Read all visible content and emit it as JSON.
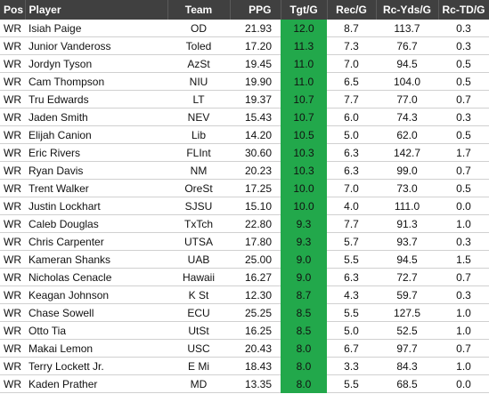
{
  "table": {
    "header": [
      "Pos",
      "Player",
      "Team",
      "PPG",
      "Tgt/G",
      "Rec/G",
      "Rc-Yds/G",
      "Rc-TD/G"
    ],
    "rows": [
      [
        "WR",
        "Isiah Paige",
        "OD",
        "21.93",
        "12.0",
        "8.7",
        "113.7",
        "0.3"
      ],
      [
        "WR",
        "Junior Vandeross",
        "Toled",
        "17.20",
        "11.3",
        "7.3",
        "76.7",
        "0.3"
      ],
      [
        "WR",
        "Jordyn Tyson",
        "AzSt",
        "19.45",
        "11.0",
        "7.0",
        "94.5",
        "0.5"
      ],
      [
        "WR",
        "Cam Thompson",
        "NIU",
        "19.90",
        "11.0",
        "6.5",
        "104.0",
        "0.5"
      ],
      [
        "WR",
        "Tru Edwards",
        "LT",
        "19.37",
        "10.7",
        "7.7",
        "77.0",
        "0.7"
      ],
      [
        "WR",
        "Jaden Smith",
        "NEV",
        "15.43",
        "10.7",
        "6.0",
        "74.3",
        "0.3"
      ],
      [
        "WR",
        "Elijah Canion",
        "Lib",
        "14.20",
        "10.5",
        "5.0",
        "62.0",
        "0.5"
      ],
      [
        "WR",
        "Eric Rivers",
        "FLInt",
        "30.60",
        "10.3",
        "6.3",
        "142.7",
        "1.7"
      ],
      [
        "WR",
        "Ryan Davis",
        "NM",
        "20.23",
        "10.3",
        "6.3",
        "99.0",
        "0.7"
      ],
      [
        "WR",
        "Trent Walker",
        "OreSt",
        "17.25",
        "10.0",
        "7.0",
        "73.0",
        "0.5"
      ],
      [
        "WR",
        "Justin Lockhart",
        "SJSU",
        "15.10",
        "10.0",
        "4.0",
        "111.0",
        "0.0"
      ],
      [
        "WR",
        "Caleb Douglas",
        "TxTch",
        "22.80",
        "9.3",
        "7.7",
        "91.3",
        "1.0"
      ],
      [
        "WR",
        "Chris Carpenter",
        "UTSA",
        "17.80",
        "9.3",
        "5.7",
        "93.7",
        "0.3"
      ],
      [
        "WR",
        "Kameran Shanks",
        "UAB",
        "25.00",
        "9.0",
        "5.5",
        "94.5",
        "1.5"
      ],
      [
        "WR",
        "Nicholas Cenacle",
        "Hawaii",
        "16.27",
        "9.0",
        "6.3",
        "72.7",
        "0.7"
      ],
      [
        "WR",
        "Keagan Johnson",
        "K St",
        "12.30",
        "8.7",
        "4.3",
        "59.7",
        "0.3"
      ],
      [
        "WR",
        "Chase Sowell",
        "ECU",
        "25.25",
        "8.5",
        "5.5",
        "127.5",
        "1.0"
      ],
      [
        "WR",
        "Otto Tia",
        "UtSt",
        "16.25",
        "8.5",
        "5.0",
        "52.5",
        "1.0"
      ],
      [
        "WR",
        "Makai Lemon",
        "USC",
        "20.43",
        "8.0",
        "6.7",
        "97.7",
        "0.7"
      ],
      [
        "WR",
        "Terry Lockett Jr.",
        "E Mi",
        "18.43",
        "8.0",
        "3.3",
        "84.3",
        "1.0"
      ],
      [
        "WR",
        "Kaden Prather",
        "MD",
        "13.35",
        "8.0",
        "5.5",
        "68.5",
        "0.0"
      ]
    ]
  }
}
